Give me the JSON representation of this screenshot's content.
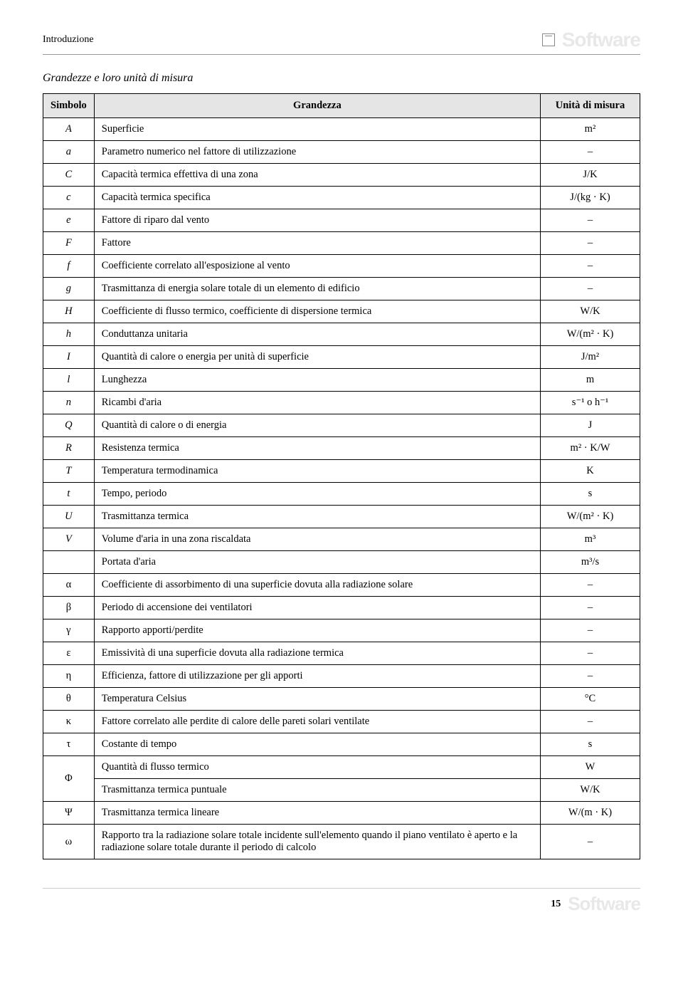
{
  "header": {
    "section": "Introduzione",
    "watermark": "Software"
  },
  "subtitle": "Grandezze e loro unità di misura",
  "table": {
    "columns": {
      "symbol": "Simbolo",
      "quantity": "Grandezza",
      "unit": "Unità di misura"
    },
    "rows": [
      {
        "sym": "A",
        "desc": "Superficie",
        "unit": "m²"
      },
      {
        "sym": "a",
        "desc": "Parametro numerico nel fattore di utilizzazione",
        "unit": "–"
      },
      {
        "sym": "C",
        "desc": "Capacità termica effettiva di una zona",
        "unit": "J/K"
      },
      {
        "sym": "c",
        "desc": "Capacità termica specifica",
        "unit": "J/(kg · K)"
      },
      {
        "sym": "e",
        "desc": "Fattore di riparo dal vento",
        "unit": "–"
      },
      {
        "sym": "F",
        "desc": "Fattore",
        "unit": "–"
      },
      {
        "sym": "f",
        "desc": "Coefficiente correlato all'esposizione al vento",
        "unit": "–"
      },
      {
        "sym": "g",
        "desc": "Trasmittanza di energia solare totale di un elemento di edificio",
        "unit": "–"
      },
      {
        "sym": "H",
        "desc": "Coefficiente di flusso termico, coefficiente di dispersione termica",
        "unit": "W/K"
      },
      {
        "sym": "h",
        "desc": "Conduttanza unitaria",
        "unit": "W/(m² · K)"
      },
      {
        "sym": "I",
        "desc": "Quantità di calore o energia per unità di superficie",
        "unit": "J/m²"
      },
      {
        "sym": "l",
        "desc": "Lunghezza",
        "unit": "m"
      },
      {
        "sym": "n",
        "desc": "Ricambi d'aria",
        "unit": "s⁻¹ o h⁻¹"
      },
      {
        "sym": "Q",
        "desc": "Quantità di calore o di energia",
        "unit": "J"
      },
      {
        "sym": "R",
        "desc": "Resistenza termica",
        "unit": "m² · K/W"
      },
      {
        "sym": "T",
        "desc": "Temperatura termodinamica",
        "unit": "K"
      },
      {
        "sym": "t",
        "desc": "Tempo, periodo",
        "unit": "s"
      },
      {
        "sym": "U",
        "desc": "Trasmittanza termica",
        "unit": "W/(m² · K)"
      },
      {
        "sym": "V",
        "desc": "Volume d'aria in una zona riscaldata",
        "unit": "m³"
      },
      {
        "sym": "",
        "desc": "Portata d'aria",
        "unit": "m³/s"
      },
      {
        "sym": "α",
        "desc": "Coefficiente di assorbimento di una superficie dovuta alla radiazione solare",
        "unit": "–",
        "greek": true
      },
      {
        "sym": "β",
        "desc": "Periodo di accensione dei ventilatori",
        "unit": "–",
        "greek": true
      },
      {
        "sym": "γ",
        "desc": "Rapporto apporti/perdite",
        "unit": "–",
        "greek": true
      },
      {
        "sym": "ε",
        "desc": "Emissività di una superficie dovuta alla radiazione termica",
        "unit": "–",
        "greek": true
      },
      {
        "sym": "η",
        "desc": "Efficienza, fattore di utilizzazione per gli apporti",
        "unit": "–",
        "greek": true
      },
      {
        "sym": "θ",
        "desc": "Temperatura Celsius",
        "unit": "°C",
        "greek": true
      },
      {
        "sym": "κ",
        "desc": "Fattore correlato alle perdite di calore delle pareti solari ventilate",
        "unit": "–",
        "greek": true
      },
      {
        "sym": "τ",
        "desc": "Costante di tempo",
        "unit": "s",
        "greek": true
      }
    ],
    "phi_symbol": "Φ",
    "phi_row1": {
      "desc": "Quantità di flusso termico",
      "unit": "W"
    },
    "phi_row2": {
      "desc": "Trasmittanza termica puntuale",
      "unit": "W/K"
    },
    "psi_row": {
      "sym": "Ψ",
      "desc": "Trasmittanza termica lineare",
      "unit": "W/(m · K)"
    },
    "omega_row": {
      "sym": "ω",
      "desc": "Rapporto tra la radiazione solare totale incidente sull'elemento quando il piano ventilato è aperto e la radiazione solare totale durante il periodo di calcolo",
      "unit": "–"
    }
  },
  "footer": {
    "page": "15",
    "watermark": "Software"
  }
}
